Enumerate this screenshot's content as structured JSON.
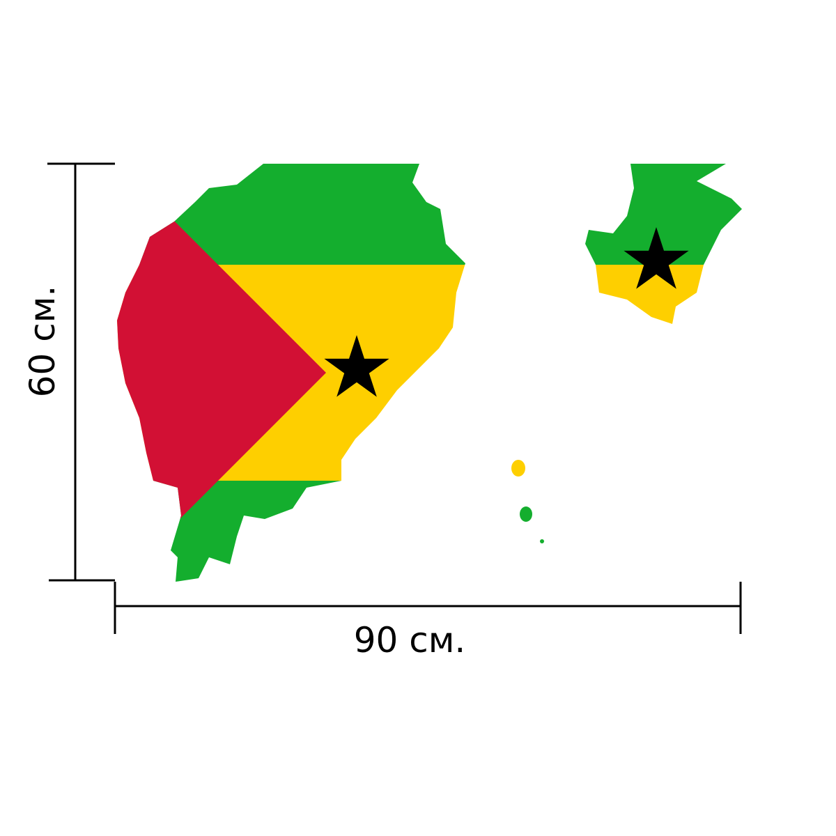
{
  "dimensions": {
    "height_label": "60 см.",
    "width_label": "90 см."
  },
  "colors": {
    "green": "#14AE2E",
    "yellow": "#FECF00",
    "red": "#D21034",
    "star": "#000000",
    "dimension_lines": "#000000"
  },
  "icons": [
    "star-icon",
    "star-icon"
  ]
}
